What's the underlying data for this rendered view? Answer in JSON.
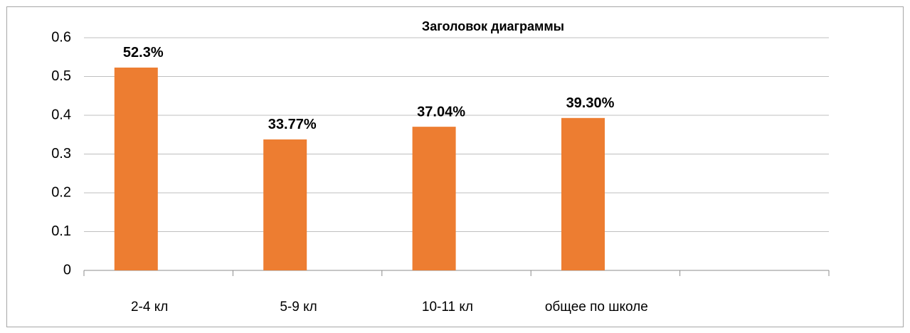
{
  "chart_data": {
    "type": "bar",
    "title": "Заголовок диаграммы",
    "categories": [
      "2-4 кл",
      "5-9 кл",
      "10-11 кл",
      "общее по школе",
      null
    ],
    "values": [
      0.523,
      0.3377,
      0.3704,
      0.393,
      null
    ],
    "value_labels": [
      "52.3%",
      "33.77%",
      "37.04%",
      "39.30%",
      null
    ],
    "color": "#ed7d31",
    "ylim": [
      0,
      0.6
    ],
    "yticks": [
      0,
      0.1,
      0.2,
      0.3,
      0.4,
      0.5,
      0.6
    ],
    "grid": true
  }
}
